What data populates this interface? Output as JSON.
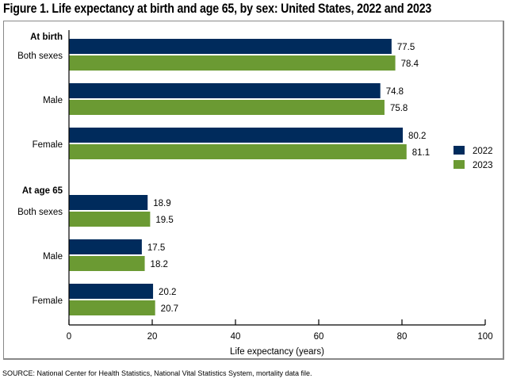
{
  "title": "Figure 1. Life expectancy at birth and age 65, by sex: United States, 2022 and 2023",
  "source": "SOURCE: National Center for Health Statistics, National Vital Statistics System, mortality data file.",
  "chart_data": {
    "type": "bar",
    "orientation": "horizontal",
    "title": "Figure 1. Life expectancy at birth and age 65, by sex: United States, 2022 and 2023",
    "xlabel": "Life expectancy (years)",
    "xlim": [
      0,
      100
    ],
    "xticks": [
      0,
      20,
      40,
      60,
      80,
      100
    ],
    "grid": false,
    "legend_position": "right",
    "groups": [
      {
        "label": "At birth",
        "categories": [
          "Both sexes",
          "Male",
          "Female"
        ]
      },
      {
        "label": "At age 65",
        "categories": [
          "Both sexes",
          "Male",
          "Female"
        ]
      }
    ],
    "series": [
      {
        "name": "2022",
        "color": "#002b5c",
        "values": [
          [
            77.5,
            74.8,
            80.2
          ],
          [
            18.9,
            17.5,
            20.2
          ]
        ]
      },
      {
        "name": "2023",
        "color": "#6b9a33",
        "values": [
          [
            78.4,
            75.8,
            81.1
          ],
          [
            19.5,
            18.2,
            20.7
          ]
        ]
      }
    ]
  }
}
